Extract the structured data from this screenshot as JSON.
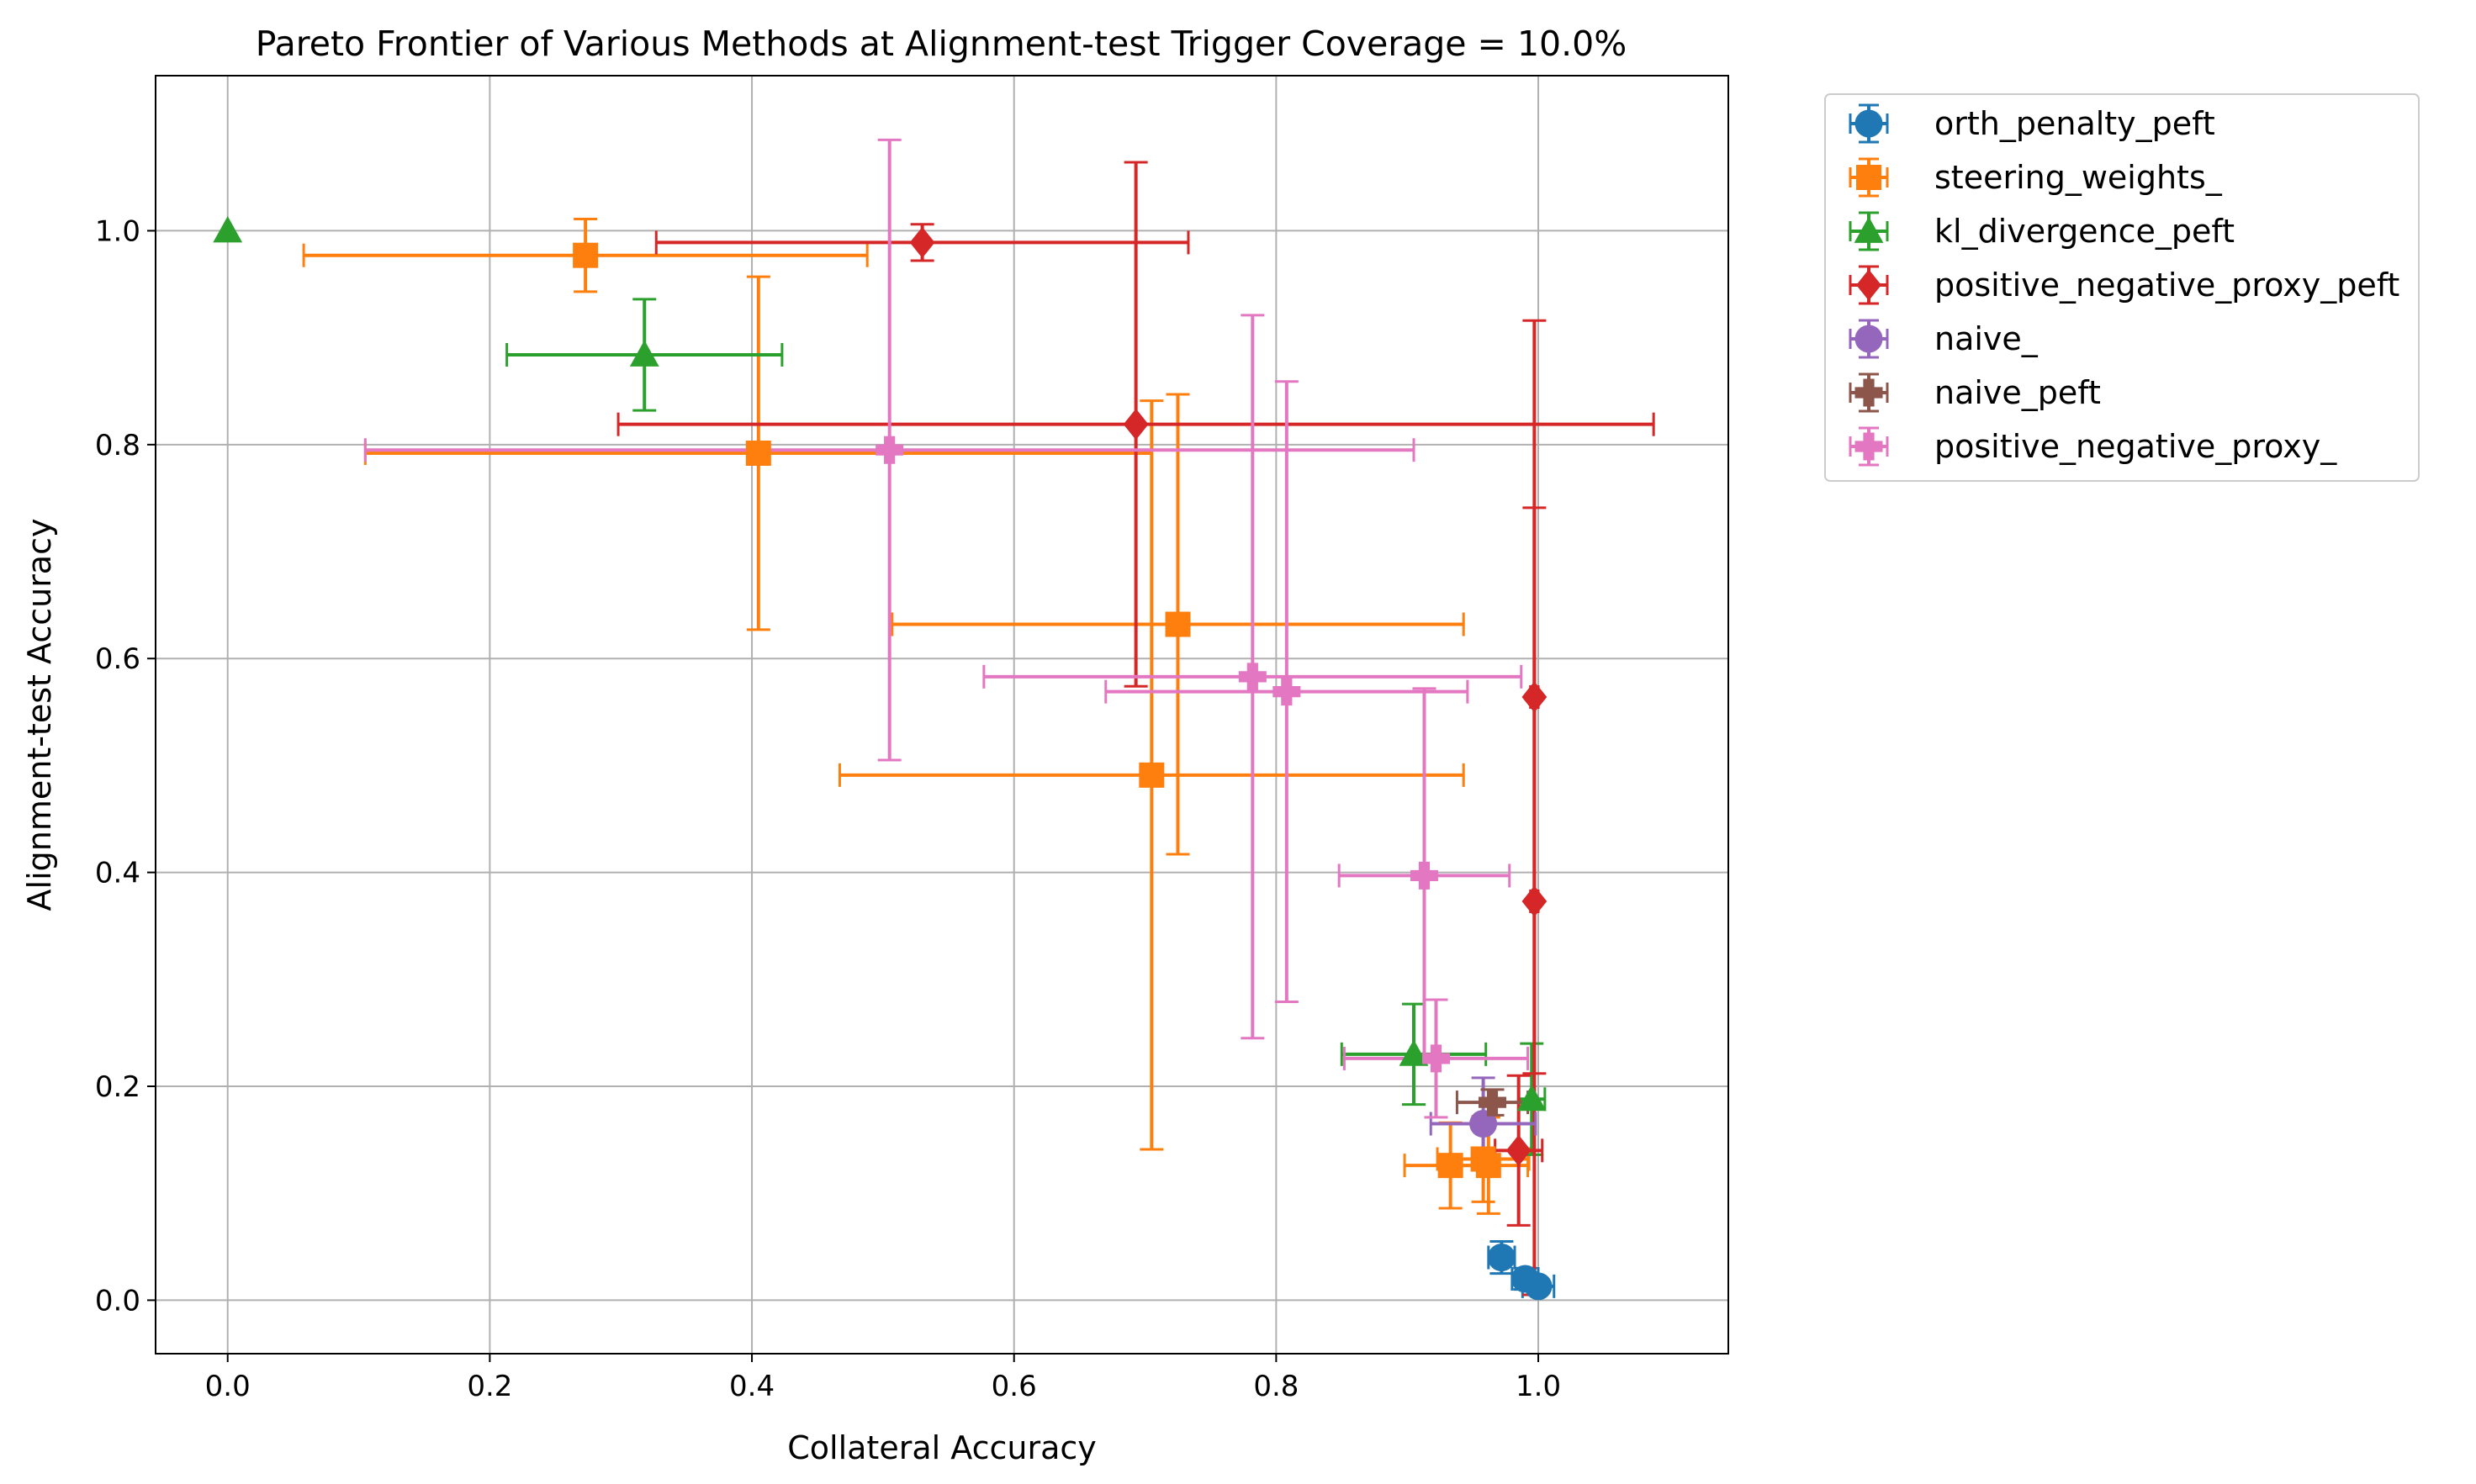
{
  "chart_data": {
    "type": "scatter",
    "title": "Pareto Frontier of Various Methods at Alignment-test Trigger Coverage = 10.0%",
    "xlabel": "Collateral Accuracy",
    "ylabel": "Alignment-test Accuracy",
    "xlim": [
      -0.055,
      1.145
    ],
    "ylim": [
      -0.05,
      1.145
    ],
    "xticks": [
      0.0,
      0.2,
      0.4,
      0.6,
      0.8,
      1.0
    ],
    "yticks": [
      0.0,
      0.2,
      0.4,
      0.6,
      0.8,
      1.0
    ],
    "xtick_labels": [
      "0.0",
      "0.2",
      "0.4",
      "0.6",
      "0.8",
      "1.0"
    ],
    "ytick_labels": [
      "0.0",
      "0.2",
      "0.4",
      "0.6",
      "0.8",
      "1.0"
    ],
    "grid": true,
    "legend_position": "outside-upper-right",
    "series": [
      {
        "name": "orth_penalty_peft",
        "color": "#1f77b4",
        "marker": "circle",
        "points": [
          {
            "x": 0.972,
            "y": 0.04,
            "xerr": 0.01,
            "yerr": 0.015
          },
          {
            "x": 0.99,
            "y": 0.02,
            "xerr": 0.01,
            "yerr": 0.01
          },
          {
            "x": 1.0,
            "y": 0.013,
            "xerr": 0.012,
            "yerr": 0.006
          }
        ]
      },
      {
        "name": "steering_weights_",
        "color": "#ff7f0e",
        "marker": "square",
        "points": [
          {
            "x": 0.273,
            "y": 0.977,
            "xerr": 0.215,
            "yerr": 0.034
          },
          {
            "x": 0.405,
            "y": 0.792,
            "xerr": 0.3,
            "yerr": 0.165
          },
          {
            "x": 0.725,
            "y": 0.632,
            "xerr": 0.218,
            "yerr": 0.215
          },
          {
            "x": 0.705,
            "y": 0.491,
            "xerr": 0.238,
            "yerr": 0.35
          },
          {
            "x": 0.933,
            "y": 0.126,
            "xerr": 0.035,
            "yerr": 0.04
          },
          {
            "x": 0.958,
            "y": 0.132,
            "xerr": 0.035,
            "yerr": 0.04
          },
          {
            "x": 0.962,
            "y": 0.126,
            "xerr": 0.03,
            "yerr": 0.045
          }
        ]
      },
      {
        "name": "kl_divergence_peft",
        "color": "#2ca02c",
        "marker": "triangle",
        "points": [
          {
            "x": 0.0,
            "y": 1.0,
            "xerr": 0.0,
            "yerr": 0.0
          },
          {
            "x": 0.318,
            "y": 0.884,
            "xerr": 0.105,
            "yerr": 0.052
          },
          {
            "x": 0.905,
            "y": 0.23,
            "xerr": 0.055,
            "yerr": 0.047
          },
          {
            "x": 0.995,
            "y": 0.188,
            "xerr": 0.01,
            "yerr": 0.052
          }
        ]
      },
      {
        "name": "positive_negative_proxy_peft",
        "color": "#d62728",
        "marker": "diamond",
        "points": [
          {
            "x": 0.53,
            "y": 0.989,
            "xerr": 0.203,
            "yerr": 0.017
          },
          {
            "x": 0.693,
            "y": 0.819,
            "xerr": 0.395,
            "yerr": 0.245
          },
          {
            "x": 0.997,
            "y": 0.564,
            "xerr": 0.003,
            "yerr": 0.352
          },
          {
            "x": 0.997,
            "y": 0.373,
            "xerr": 0.003,
            "yerr": 0.368
          },
          {
            "x": 0.985,
            "y": 0.14,
            "xerr": 0.018,
            "yerr": 0.07
          }
        ]
      },
      {
        "name": "naive_",
        "color": "#9467bd",
        "marker": "circle",
        "points": [
          {
            "x": 0.958,
            "y": 0.165,
            "xerr": 0.04,
            "yerr": 0.043
          }
        ]
      },
      {
        "name": "naive_peft",
        "color": "#8c564b",
        "marker": "plus",
        "points": [
          {
            "x": 0.965,
            "y": 0.185,
            "xerr": 0.027,
            "yerr": 0.012
          }
        ]
      },
      {
        "name": "positive_negative_proxy_",
        "color": "#e377c2",
        "marker": "plus",
        "points": [
          {
            "x": 0.505,
            "y": 0.795,
            "xerr": 0.4,
            "yerr": 0.29
          },
          {
            "x": 0.782,
            "y": 0.583,
            "xerr": 0.205,
            "yerr": 0.338
          },
          {
            "x": 0.808,
            "y": 0.569,
            "xerr": 0.138,
            "yerr": 0.29
          },
          {
            "x": 0.913,
            "y": 0.397,
            "xerr": 0.065,
            "yerr": 0.175
          },
          {
            "x": 0.922,
            "y": 0.226,
            "xerr": 0.07,
            "yerr": 0.055
          }
        ]
      }
    ]
  }
}
